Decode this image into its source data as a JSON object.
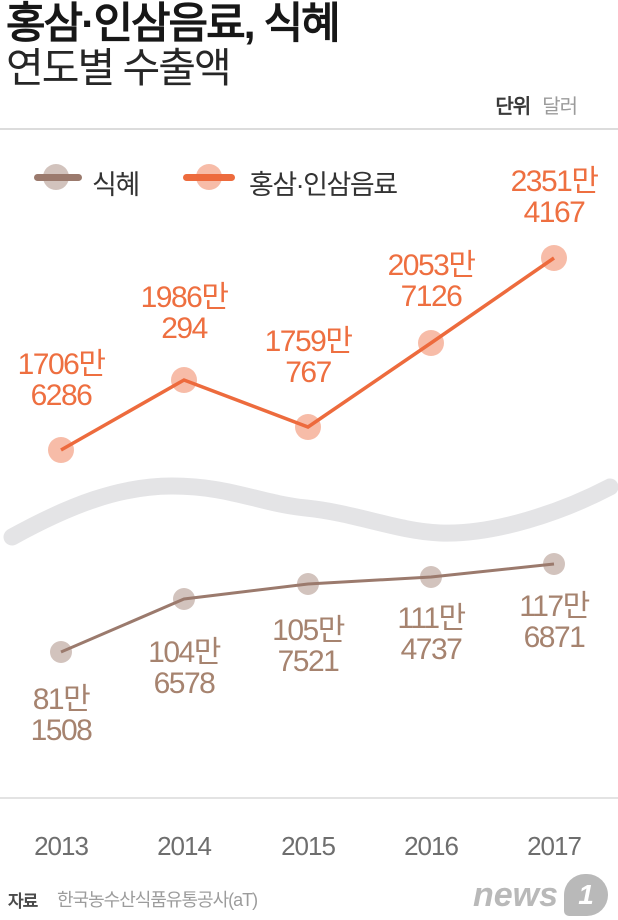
{
  "header": {
    "title_line1": "홍삼·인삼음료, 식혜",
    "title_line2": "연도별 수출액",
    "unit_label": "단위",
    "unit_value": "달러"
  },
  "legend": [
    {
      "label": "식혜",
      "color": "#9b7a6d"
    },
    {
      "label": "홍삼·인삼음료",
      "color": "#ed6b3d"
    }
  ],
  "chart_data": {
    "type": "line",
    "title": "홍삼·인삼음료, 식혜 연도별 수출액",
    "unit": "달러",
    "categories": [
      "2013",
      "2014",
      "2015",
      "2016",
      "2017"
    ],
    "axis_break": true,
    "grid": false,
    "legend_position": "top-left",
    "series": [
      {
        "name": "홍삼·인삼음료",
        "color": "#ed6b3d",
        "marker_fill": "rgba(237,107,61,0.45)",
        "label_color": "#ee6f40",
        "values": [
          17066286,
          19860294,
          17590767,
          20537126,
          23514167
        ],
        "labels": [
          [
            "1706만",
            "6286"
          ],
          [
            "1986만",
            "294"
          ],
          [
            "1759만",
            "767"
          ],
          [
            "2053만",
            "7126"
          ],
          [
            "2351만",
            "4167"
          ]
        ]
      },
      {
        "name": "식혜",
        "color": "#9b7a6d",
        "marker_fill": "rgba(155,122,109,0.45)",
        "label_color": "#a6836f",
        "values": [
          811508,
          1046578,
          1057521,
          1114737,
          1176871
        ],
        "labels": [
          [
            "81만",
            "1508"
          ],
          [
            "104만",
            "6578"
          ],
          [
            "105만",
            "7521"
          ],
          [
            "111만",
            "4737"
          ],
          [
            "117만",
            "6871"
          ]
        ]
      }
    ]
  },
  "footer": {
    "source_label": "자료",
    "source_value": "한국농수산식품유통공사(aT)",
    "logo_news": "news",
    "logo_one": "1"
  }
}
